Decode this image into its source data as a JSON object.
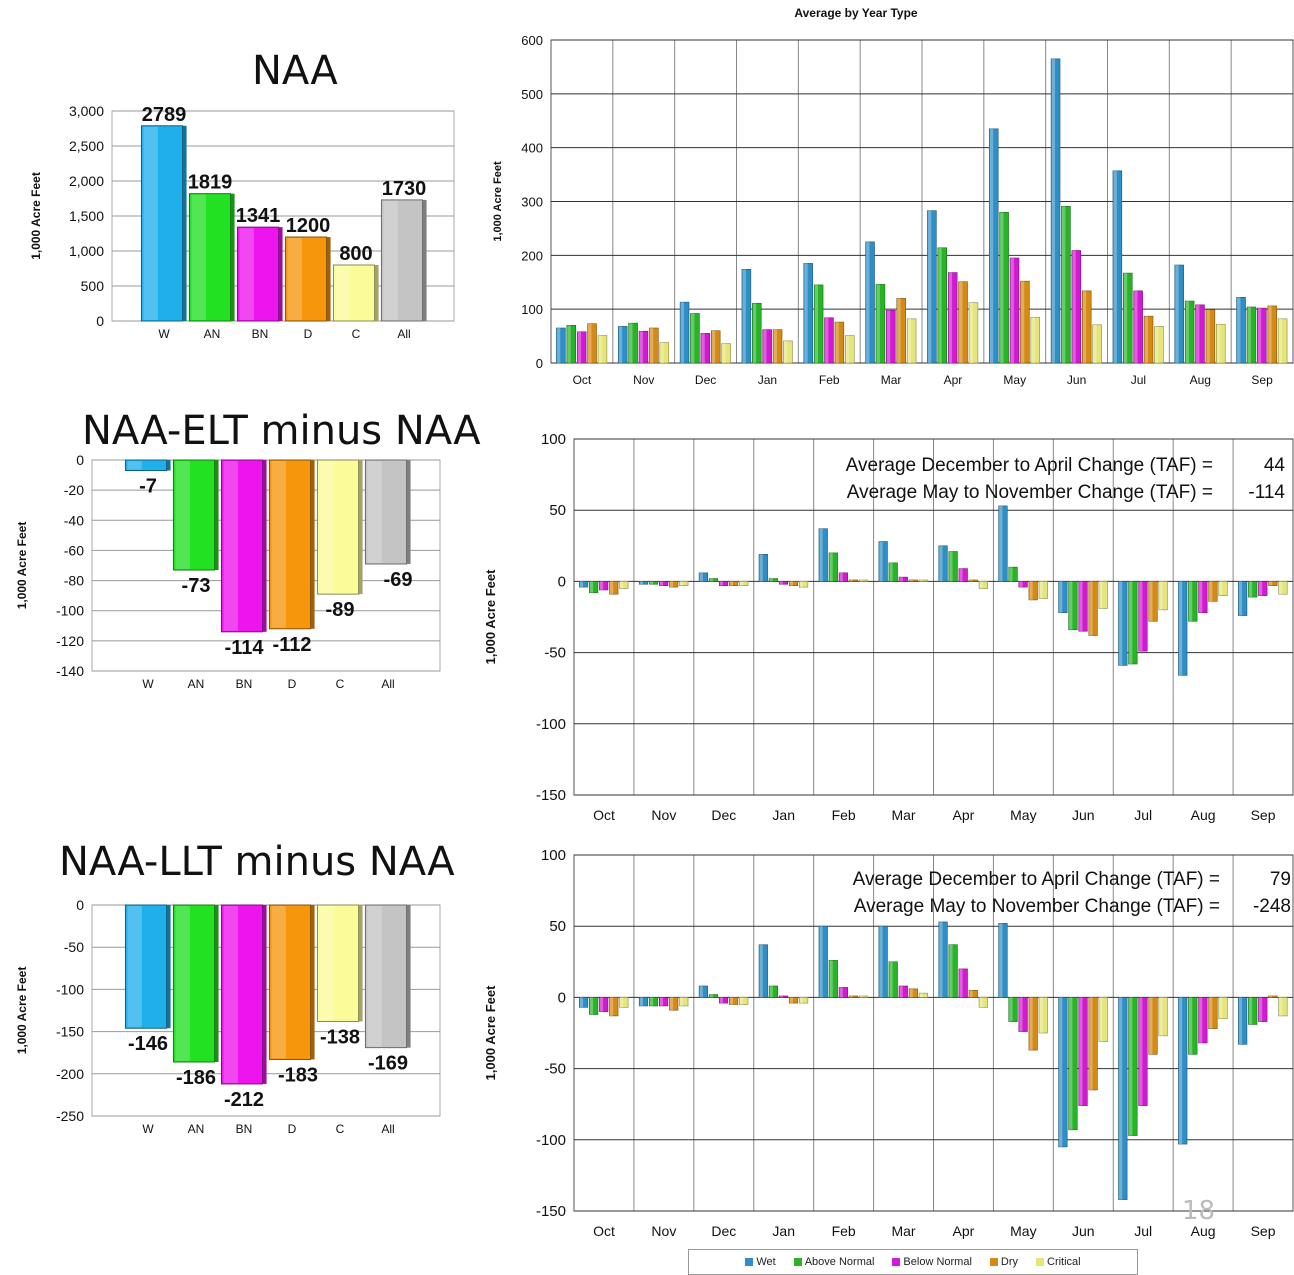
{
  "page": {
    "slide_number": "18"
  },
  "colors": {
    "W": "#1fb0ec",
    "AN": "#22e022",
    "BN": "#ee14ee",
    "D": "#f5960c",
    "C": "#fbfb9a",
    "All": "#c4c4c4",
    "Wet": "#2e8fc6",
    "Above Normal": "#27b427",
    "Below Normal": "#d11ad1",
    "Dry": "#d48a14",
    "Critical": "#e5e57a"
  },
  "legend": {
    "items": [
      "Wet",
      "Above Normal",
      "Below Normal",
      "Dry",
      "Critical"
    ]
  },
  "chart_data": [
    {
      "id": "naa",
      "type": "bar",
      "title": "NAA",
      "ylabel": "1,000 Acre Feet",
      "xlabel": "",
      "categories": [
        "W",
        "AN",
        "BN",
        "D",
        "C",
        "All"
      ],
      "values": [
        2789,
        1819,
        1341,
        1200,
        800,
        1730
      ],
      "data_labels": [
        "2789",
        "1819",
        "1341",
        "1200",
        "800",
        "1730"
      ],
      "ylim": [
        0,
        3000
      ],
      "yticks": [
        0,
        500,
        1000,
        1500,
        2000,
        2500,
        3000
      ],
      "ytick_labels": [
        "0",
        "500",
        "1,000",
        "1,500",
        "2,000",
        "2,500",
        "3,000"
      ],
      "grid": true
    },
    {
      "id": "naa-monthly",
      "type": "bar",
      "title": "Average by Year Type",
      "ylabel": "1,000 Acre Feet",
      "xlabel": "",
      "categories": [
        "Oct",
        "Nov",
        "Dec",
        "Jan",
        "Feb",
        "Mar",
        "Apr",
        "May",
        "Jun",
        "Jul",
        "Aug",
        "Sep"
      ],
      "series": [
        {
          "name": "Wet",
          "values": [
            65,
            68,
            113,
            174,
            185,
            225,
            283,
            435,
            565,
            357,
            182,
            122
          ]
        },
        {
          "name": "Above Normal",
          "values": [
            70,
            74,
            92,
            111,
            145,
            146,
            214,
            280,
            291,
            167,
            115,
            104
          ]
        },
        {
          "name": "Below Normal",
          "values": [
            58,
            59,
            55,
            62,
            84,
            98,
            168,
            195,
            209,
            134,
            108,
            102
          ]
        },
        {
          "name": "Dry",
          "values": [
            73,
            65,
            60,
            62,
            76,
            120,
            151,
            152,
            134,
            87,
            99,
            106
          ]
        },
        {
          "name": "Critical",
          "values": [
            51,
            38,
            36,
            41,
            51,
            82,
            112,
            85,
            71,
            68,
            72,
            82
          ]
        }
      ],
      "ylim": [
        0,
        600
      ],
      "yticks": [
        0,
        100,
        200,
        300,
        400,
        500,
        600
      ],
      "ytick_labels": [
        "0",
        "100",
        "200",
        "300",
        "400",
        "500",
        "600"
      ],
      "grid": true
    },
    {
      "id": "elt",
      "type": "bar",
      "title": "NAA-ELT minus NAA",
      "ylabel": "1,000 Acre Feet",
      "xlabel": "",
      "categories": [
        "W",
        "AN",
        "BN",
        "D",
        "C",
        "All"
      ],
      "values": [
        -7,
        -73,
        -114,
        -112,
        -89,
        -69
      ],
      "data_labels": [
        "-7",
        "-73",
        "-114",
        "-112",
        "-89",
        "-69"
      ],
      "ylim": [
        -140,
        0
      ],
      "yticks": [
        0,
        -20,
        -40,
        -60,
        -80,
        -100,
        -120,
        -140
      ],
      "ytick_labels": [
        "0",
        "-20",
        "-40",
        "-60",
        "-80",
        "-100",
        "-120",
        "-140"
      ],
      "grid": true
    },
    {
      "id": "elt-monthly",
      "type": "bar",
      "title": "",
      "ylabel": "1,000 Acre Feet",
      "xlabel": "",
      "categories": [
        "Oct",
        "Nov",
        "Dec",
        "Jan",
        "Feb",
        "Mar",
        "Apr",
        "May",
        "Jun",
        "Jul",
        "Aug",
        "Sep"
      ],
      "series": [
        {
          "name": "Wet",
          "values": [
            -4,
            -2,
            6,
            19,
            37,
            28,
            25,
            53,
            -22,
            -59,
            -66,
            -24
          ]
        },
        {
          "name": "Above Normal",
          "values": [
            -8,
            -2,
            2,
            2,
            20,
            13,
            21,
            10,
            -34,
            -58,
            -28,
            -11
          ]
        },
        {
          "name": "Below Normal",
          "values": [
            -6,
            -3,
            -3,
            -2,
            6,
            3,
            9,
            -4,
            -35,
            -49,
            -22,
            -10
          ]
        },
        {
          "name": "Dry",
          "values": [
            -9,
            -4,
            -3,
            -3,
            1,
            1,
            1,
            -13,
            -38,
            -28,
            -14,
            -3
          ]
        },
        {
          "name": "Critical",
          "values": [
            -5,
            -3,
            -3,
            -4,
            1,
            1,
            -5,
            -12,
            -19,
            -20,
            -10,
            -9
          ]
        }
      ],
      "ylim": [
        -150,
        100
      ],
      "yticks": [
        100,
        50,
        0,
        -50,
        -100,
        -150
      ],
      "ytick_labels": [
        "100",
        "50",
        "0",
        "-50",
        "-100",
        "-150"
      ],
      "grid": true,
      "annotations": [
        {
          "label": "Average December to April Change (TAF) =",
          "value": "44"
        },
        {
          "label": "Average May to November Change (TAF) =",
          "value": "-114"
        }
      ]
    },
    {
      "id": "llt",
      "type": "bar",
      "title": "NAA-LLT minus NAA",
      "ylabel": "1,000 Acre Feet",
      "xlabel": "",
      "categories": [
        "W",
        "AN",
        "BN",
        "D",
        "C",
        "All"
      ],
      "values": [
        -146,
        -186,
        -212,
        -183,
        -138,
        -169
      ],
      "data_labels": [
        "-146",
        "-186",
        "-212",
        "-183",
        "-138",
        "-169"
      ],
      "ylim": [
        -250,
        0
      ],
      "yticks": [
        0,
        -50,
        -100,
        -150,
        -200,
        -250
      ],
      "ytick_labels": [
        "0",
        "-50",
        "-100",
        "-150",
        "-200",
        "-250"
      ],
      "grid": true
    },
    {
      "id": "llt-monthly",
      "type": "bar",
      "title": "",
      "ylabel": "1,000 Acre Feet",
      "xlabel": "",
      "categories": [
        "Oct",
        "Nov",
        "Dec",
        "Jan",
        "Feb",
        "Mar",
        "Apr",
        "May",
        "Jun",
        "Jul",
        "Aug",
        "Sep"
      ],
      "series": [
        {
          "name": "Wet",
          "values": [
            -7,
            -6,
            8,
            37,
            50,
            50,
            53,
            52,
            -105,
            -142,
            -103,
            -33
          ]
        },
        {
          "name": "Above Normal",
          "values": [
            -12,
            -6,
            2,
            8,
            26,
            25,
            37,
            -17,
            -93,
            -97,
            -40,
            -19
          ]
        },
        {
          "name": "Below Normal",
          "values": [
            -10,
            -6,
            -4,
            1,
            7,
            8,
            20,
            -24,
            -76,
            -76,
            -32,
            -17
          ]
        },
        {
          "name": "Dry",
          "values": [
            -13,
            -9,
            -5,
            -4,
            1,
            6,
            5,
            -37,
            -65,
            -40,
            -22,
            1
          ]
        },
        {
          "name": "Critical",
          "values": [
            -7,
            -6,
            -5,
            -4,
            1,
            3,
            -7,
            -25,
            -31,
            -27,
            -15,
            -13
          ]
        }
      ],
      "ylim": [
        -150,
        100
      ],
      "yticks": [
        100,
        50,
        0,
        -50,
        -100,
        -150
      ],
      "ytick_labels": [
        "100",
        "50",
        "0",
        "-50",
        "-100",
        "-150"
      ],
      "grid": true,
      "annotations": [
        {
          "label": "Average December to April Change (TAF) =",
          "value": "79"
        },
        {
          "label": "Average May to November Change (TAF) =",
          "value": "-248"
        }
      ]
    }
  ]
}
